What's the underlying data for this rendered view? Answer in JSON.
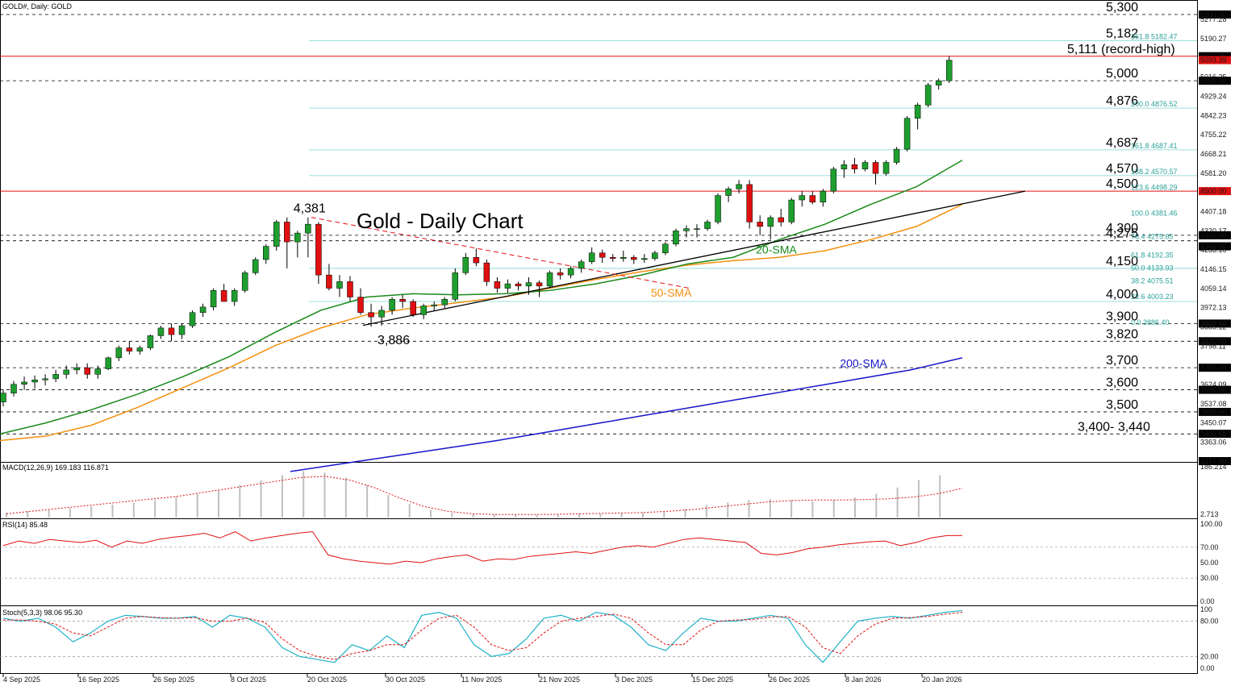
{
  "header": {
    "symbol_label": "GOLD#, Daily:  GOLD"
  },
  "chart_title": "Gold - Daily Chart",
  "colors": {
    "bull": "#1e9e2e",
    "bear": "#e01010",
    "sma20": "#1a8a1a",
    "sma50": "#f5900f",
    "sma200": "#1515c8",
    "fib": "#7fd6d0",
    "level": "#000000",
    "red_level": "#e01010",
    "macd_hist": "#bfbfbf",
    "macd_signal": "#e01010",
    "rsi": "#e01010",
    "stoch_k": "#20b2c8",
    "stoch_d": "#e01010"
  },
  "chart_data": {
    "type": "candlestick",
    "ylim": [
      3277,
      5300
    ],
    "date_labels": [
      "4 Sep 2025",
      "16 Sep 2025",
      "26 Sep 2025",
      "8 Oct 2025",
      "20 Oct 2025",
      "30 Oct 2025",
      "11 Nov 2025",
      "21 Nov 2025",
      "3 Dec 2025",
      "15 Dec 2025",
      "26 Dec 2025",
      "8 Jan 2026",
      "20 Jan 2026"
    ],
    "price_ticks": [
      "5300.00",
      "5277.28",
      "5190.27",
      "5111.25",
      "5093.39",
      "5016.25",
      "5000.00",
      "4929.24",
      "4842.23",
      "4755.22",
      "4668.21",
      "4581.20",
      "4500.00",
      "4407.18",
      "4320.17",
      "4300.00",
      "4250.00",
      "4233.16",
      "4146.15",
      "4059.14",
      "3972.13",
      "3900.00",
      "3885.12",
      "3820.00",
      "3798.11",
      "3700.00",
      "3624.09",
      "3600.00",
      "3537.08",
      "3500.00",
      "3450.07",
      "3400.68",
      "3363.06",
      "3277.00"
    ],
    "ohlc": [
      [
        3545,
        3600,
        3525,
        3585
      ],
      [
        3585,
        3640,
        3570,
        3625
      ],
      [
        3625,
        3660,
        3600,
        3635
      ],
      [
        3635,
        3665,
        3605,
        3645
      ],
      [
        3645,
        3670,
        3620,
        3650
      ],
      [
        3650,
        3690,
        3635,
        3670
      ],
      [
        3670,
        3710,
        3650,
        3690
      ],
      [
        3690,
        3720,
        3670,
        3700
      ],
      [
        3700,
        3720,
        3650,
        3670
      ],
      [
        3670,
        3710,
        3650,
        3695
      ],
      [
        3695,
        3750,
        3690,
        3745
      ],
      [
        3745,
        3800,
        3730,
        3790
      ],
      [
        3790,
        3820,
        3760,
        3775
      ],
      [
        3775,
        3800,
        3760,
        3790
      ],
      [
        3790,
        3850,
        3780,
        3845
      ],
      [
        3845,
        3890,
        3830,
        3880
      ],
      [
        3880,
        3900,
        3820,
        3850
      ],
      [
        3850,
        3900,
        3830,
        3890
      ],
      [
        3890,
        3960,
        3880,
        3950
      ],
      [
        3950,
        3990,
        3930,
        3975
      ],
      [
        3975,
        4060,
        3960,
        4050
      ],
      [
        4050,
        4080,
        4000,
        4000
      ],
      [
        4000,
        4060,
        3980,
        4050
      ],
      [
        4050,
        4140,
        4040,
        4130
      ],
      [
        4130,
        4200,
        4120,
        4190
      ],
      [
        4190,
        4260,
        4170,
        4250
      ],
      [
        4250,
        4370,
        4230,
        4360
      ],
      [
        4360,
        4381,
        4150,
        4270
      ],
      [
        4270,
        4320,
        4200,
        4310
      ],
      [
        4310,
        4381,
        4200,
        4350
      ],
      [
        4350,
        4360,
        4080,
        4120
      ],
      [
        4120,
        4170,
        4050,
        4060
      ],
      [
        4060,
        4120,
        4020,
        4090
      ],
      [
        4090,
        4115,
        4000,
        4020
      ],
      [
        4020,
        4060,
        3940,
        3950
      ],
      [
        3950,
        3990,
        3886,
        3930
      ],
      [
        3930,
        3980,
        3890,
        3960
      ],
      [
        3960,
        4020,
        3940,
        4010
      ],
      [
        4010,
        4030,
        3970,
        4000
      ],
      [
        4000,
        4010,
        3930,
        3940
      ],
      [
        3940,
        3990,
        3920,
        3980
      ],
      [
        3980,
        4000,
        3960,
        3985
      ],
      [
        3985,
        4020,
        3970,
        4010
      ],
      [
        4010,
        4150,
        4000,
        4130
      ],
      [
        4130,
        4220,
        4120,
        4200
      ],
      [
        4200,
        4240,
        4160,
        4175
      ],
      [
        4175,
        4190,
        4070,
        4090
      ],
      [
        4090,
        4110,
        4040,
        4060
      ],
      [
        4060,
        4100,
        4040,
        4080
      ],
      [
        4080,
        4090,
        4050,
        4070
      ],
      [
        4070,
        4110,
        4030,
        4085
      ],
      [
        4085,
        4095,
        4020,
        4070
      ],
      [
        4070,
        4140,
        4060,
        4130
      ],
      [
        4130,
        4150,
        4100,
        4120
      ],
      [
        4120,
        4160,
        4105,
        4150
      ],
      [
        4150,
        4190,
        4130,
        4180
      ],
      [
        4180,
        4245,
        4170,
        4220
      ],
      [
        4220,
        4235,
        4175,
        4200
      ],
      [
        4200,
        4215,
        4180,
        4195
      ],
      [
        4195,
        4230,
        4180,
        4200
      ],
      [
        4200,
        4210,
        4170,
        4190
      ],
      [
        4190,
        4215,
        4175,
        4195
      ],
      [
        4195,
        4230,
        4185,
        4220
      ],
      [
        4220,
        4270,
        4210,
        4260
      ],
      [
        4260,
        4330,
        4250,
        4320
      ],
      [
        4320,
        4345,
        4290,
        4330
      ],
      [
        4330,
        4350,
        4290,
        4330
      ],
      [
        4330,
        4370,
        4320,
        4360
      ],
      [
        4360,
        4490,
        4350,
        4480
      ],
      [
        4480,
        4520,
        4450,
        4510
      ],
      [
        4510,
        4550,
        4490,
        4530
      ],
      [
        4530,
        4550,
        4330,
        4360
      ],
      [
        4360,
        4390,
        4300,
        4340
      ],
      [
        4340,
        4390,
        4280,
        4380
      ],
      [
        4380,
        4420,
        4340,
        4360
      ],
      [
        4360,
        4470,
        4350,
        4460
      ],
      [
        4460,
        4500,
        4430,
        4480
      ],
      [
        4480,
        4500,
        4440,
        4450
      ],
      [
        4450,
        4510,
        4430,
        4500
      ],
      [
        4500,
        4610,
        4490,
        4600
      ],
      [
        4600,
        4640,
        4560,
        4620
      ],
      [
        4620,
        4650,
        4580,
        4600
      ],
      [
        4600,
        4640,
        4590,
        4630
      ],
      [
        4630,
        4640,
        4530,
        4580
      ],
      [
        4580,
        4640,
        4570,
        4630
      ],
      [
        4630,
        4700,
        4620,
        4690
      ],
      [
        4690,
        4840,
        4680,
        4830
      ],
      [
        4830,
        4900,
        4780,
        4890
      ],
      [
        4890,
        4990,
        4880,
        4980
      ],
      [
        4980,
        5010,
        4960,
        5000
      ],
      [
        5000,
        5111,
        4990,
        5093
      ]
    ],
    "sma20": [
      3400,
      3450,
      3510,
      3580,
      3660,
      3750,
      3860,
      3960,
      4020,
      4035,
      4030,
      4035,
      4050,
      4080,
      4120,
      4170,
      4200,
      4280,
      4350,
      4440,
      4520,
      4640
    ],
    "sma50": [
      3370,
      3390,
      3440,
      3520,
      3610,
      3700,
      3800,
      3880,
      3940,
      3970,
      3995,
      4020,
      4060,
      4100,
      4135,
      4165,
      4185,
      4200,
      4230,
      4280,
      4340,
      4440
    ],
    "sma200": [
      3230,
      3265,
      3300,
      3335,
      3370,
      3410,
      3450,
      3490,
      3530,
      3570,
      3610,
      3650,
      3690,
      3745
    ],
    "trendline": [
      [
        35,
        3892
      ],
      [
        98,
        4500
      ]
    ],
    "resistance_dashed": [
      [
        27,
        4381
      ],
      [
        63,
        4060
      ]
    ],
    "levels": [
      {
        "label": "5,300",
        "value": 5300,
        "style": "dashed"
      },
      {
        "label": "5,182",
        "value": 5182,
        "style": "fib"
      },
      {
        "label": "5,111 (record-high)",
        "value": 5111,
        "style": "red"
      },
      {
        "label": "5,000",
        "value": 5000,
        "style": "dashed"
      },
      {
        "label": "4,876",
        "value": 4876,
        "style": "fib"
      },
      {
        "label": "4,687",
        "value": 4687,
        "style": "fib"
      },
      {
        "label": "4,570",
        "value": 4570,
        "style": "fib"
      },
      {
        "label": "4,500",
        "value": 4500,
        "style": "red"
      },
      {
        "label": "4,300",
        "value": 4300,
        "style": "dashed"
      },
      {
        "label": "4,275",
        "value": 4275,
        "style": "dashed"
      },
      {
        "label": "4,150",
        "value": 4150,
        "style": "fib"
      },
      {
        "label": "4,000",
        "value": 4000,
        "style": "fib"
      },
      {
        "label": "3,900",
        "value": 3900,
        "style": "dashed"
      },
      {
        "label": "3,820",
        "value": 3820,
        "style": "dashed"
      },
      {
        "label": "3,700",
        "value": 3700,
        "style": "dashed"
      },
      {
        "label": "3,600",
        "value": 3600,
        "style": "dashed"
      },
      {
        "label": "3,500",
        "value": 3500,
        "style": "dashed"
      },
      {
        "label": "3,400- 3,440",
        "value": 3400,
        "style": "dashed"
      }
    ],
    "fib_labels": [
      {
        "text": "261.8  5182.47",
        "value": 5182
      },
      {
        "text": "200.0  4876.52",
        "value": 4876
      },
      {
        "text": "161.8  4687.41",
        "value": 4687
      },
      {
        "text": "138.2  4570.57",
        "value": 4570
      },
      {
        "text": "123.6  4498.29",
        "value": 4498
      },
      {
        "text": "100.0  4381.46",
        "value": 4381
      },
      {
        "text": "76.4  4275.65",
        "value": 4275
      },
      {
        "text": "61.8  4192.35",
        "value": 4192
      },
      {
        "text": "50.0  4133.93",
        "value": 4134
      },
      {
        "text": "38.2  4075.51",
        "value": 4075
      },
      {
        "text": "23.6  4003.23",
        "value": 4003
      },
      {
        "text": "0.0  3886.40",
        "value": 3886
      }
    ],
    "annotations": [
      {
        "text": "4,381",
        "x": 27,
        "y": 4381
      },
      {
        "text": "3,886",
        "x": 35,
        "y": 3886
      },
      {
        "text": "20-SMA",
        "x": 71,
        "y": 4195
      },
      {
        "text": "50-SMA",
        "x": 61,
        "y": 4000
      },
      {
        "text": "200-SMA",
        "x": 79,
        "y": 3680
      }
    ],
    "macd": {
      "title": "MACD(12,26,9) 169.183 116.871",
      "ticks": [
        "186.214",
        "2.713"
      ],
      "ylim": [
        0,
        200
      ],
      "hist": [
        20,
        25,
        30,
        38,
        45,
        52,
        60,
        70,
        85,
        95,
        110,
        130,
        150,
        170,
        186,
        180,
        160,
        130,
        90,
        55,
        30,
        20,
        15,
        12,
        10,
        10,
        12,
        15,
        15,
        18,
        20,
        25,
        35,
        50,
        60,
        70,
        75,
        70,
        65,
        70,
        80,
        95,
        120,
        150,
        169
      ],
      "signal": [
        15,
        25,
        35,
        45,
        55,
        65,
        75,
        85,
        100,
        115,
        130,
        145,
        160,
        165,
        150,
        120,
        80,
        45,
        25,
        15,
        12,
        12,
        12,
        14,
        16,
        18,
        20,
        25,
        32,
        42,
        52,
        62,
        68,
        70,
        70,
        72,
        75,
        82,
        95,
        117
      ]
    },
    "rsi": {
      "title": "RSI(14) 85.48",
      "ticks": [
        "100.00",
        "70.00",
        "50.00",
        "30.00",
        "0.00"
      ],
      "values": [
        72,
        78,
        75,
        80,
        78,
        76,
        79,
        70,
        78,
        75,
        80,
        83,
        85,
        88,
        82,
        90,
        78,
        82,
        85,
        88,
        90,
        60,
        55,
        52,
        50,
        48,
        52,
        50,
        55,
        58,
        60,
        52,
        55,
        54,
        58,
        60,
        62,
        64,
        62,
        66,
        70,
        72,
        70,
        75,
        80,
        82,
        80,
        78,
        76,
        62,
        60,
        63,
        68,
        70,
        73,
        75,
        77,
        78,
        72,
        76,
        82,
        85,
        85
      ]
    },
    "stoch": {
      "title": "Stoch(5,3,3) 98.06 95.30",
      "ticks": [
        "100",
        "80.00",
        "20.00",
        "0.00"
      ],
      "k": [
        85,
        80,
        85,
        70,
        45,
        60,
        80,
        90,
        88,
        85,
        85,
        88,
        70,
        90,
        85,
        70,
        35,
        20,
        15,
        10,
        40,
        30,
        55,
        35,
        90,
        95,
        85,
        40,
        20,
        25,
        50,
        85,
        90,
        80,
        95,
        90,
        70,
        40,
        30,
        60,
        85,
        80,
        80,
        85,
        90,
        85,
        40,
        10,
        45,
        80,
        85,
        88,
        85,
        90,
        95,
        98
      ],
      "d": [
        82,
        82,
        80,
        75,
        60,
        55,
        70,
        85,
        88,
        86,
        85,
        86,
        80,
        80,
        85,
        78,
        50,
        30,
        20,
        15,
        25,
        30,
        40,
        40,
        65,
        85,
        90,
        70,
        40,
        30,
        35,
        60,
        80,
        85,
        88,
        92,
        85,
        60,
        40,
        40,
        65,
        80,
        82,
        83,
        87,
        88,
        70,
        35,
        25,
        55,
        75,
        85,
        86,
        88,
        92,
        95
      ]
    }
  }
}
